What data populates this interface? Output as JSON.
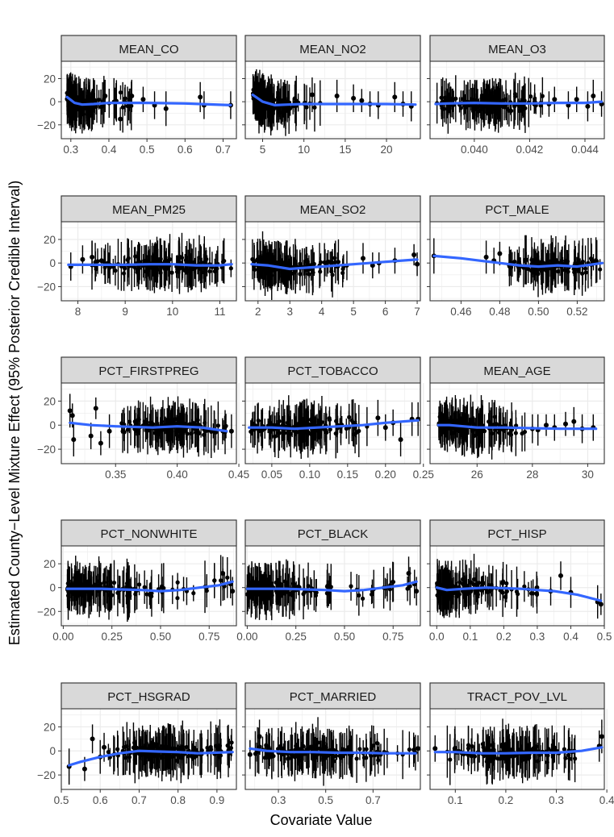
{
  "figure": {
    "ylabel": "Estimated County−Level Mixture Effect (95% Posterior Credible Interval)",
    "xlabel": "Covariate Value",
    "colors": {
      "smooth": "#3366FF",
      "strip": "#D9D9D9",
      "grid": "#EBEBEB",
      "points": "#000000",
      "panel_border": "#333333"
    }
  },
  "chart_data": [
    {
      "type": "scatter",
      "title": "MEAN_CO",
      "xlim": [
        0.275,
        0.735
      ],
      "ylim": [
        -32,
        35
      ],
      "x_ticks": [
        0.3,
        0.4,
        0.5,
        0.6,
        0.7
      ],
      "x_tick_labels": [
        "0.3",
        "0.4",
        "0.5",
        "0.6",
        "0.7"
      ],
      "y_ticks": [
        -20,
        0,
        20
      ],
      "y_tick_labels": [
        "−20",
        "0",
        "20"
      ],
      "dense": {
        "x_range": [
          0.29,
          0.46
        ],
        "peak": 0.31,
        "n": 150
      },
      "points": [
        [
          0.46,
          5
        ],
        [
          0.43,
          -15
        ],
        [
          0.49,
          2
        ],
        [
          0.52,
          -3
        ],
        [
          0.55,
          -6
        ],
        [
          0.64,
          4
        ],
        [
          0.65,
          -3
        ],
        [
          0.72,
          -3
        ],
        [
          0.39,
          5
        ]
      ],
      "smooth": {
        "x": [
          0.29,
          0.31,
          0.33,
          0.36,
          0.4,
          0.5,
          0.6,
          0.72
        ],
        "y": [
          4,
          -1,
          -2.5,
          -2,
          -1,
          -1,
          -1.5,
          -3
        ]
      }
    },
    {
      "type": "scatter",
      "title": "MEAN_NO2",
      "xlim": [
        2.9,
        24.1
      ],
      "ylim": [
        -32,
        35
      ],
      "x_ticks": [
        5,
        10,
        15,
        20
      ],
      "x_tick_labels": [
        "5",
        "10",
        "15",
        "20"
      ],
      "y_ticks": [
        -20,
        0,
        20
      ],
      "y_tick_labels": [
        "−20",
        "0",
        "20"
      ],
      "dense": {
        "x_range": [
          3.8,
          12
        ],
        "peak": 4.8,
        "n": 150
      },
      "points": [
        [
          14,
          5
        ],
        [
          11,
          6
        ],
        [
          16,
          3
        ],
        [
          17,
          1
        ],
        [
          19,
          -3
        ],
        [
          21,
          4
        ],
        [
          22,
          -2
        ],
        [
          23,
          -4
        ],
        [
          18,
          -2
        ]
      ],
      "smooth": {
        "x": [
          3.8,
          5,
          6.5,
          8,
          10,
          15,
          20,
          23.5
        ],
        "y": [
          6,
          0,
          -3,
          -2.5,
          -2,
          -2,
          -2,
          -2.5
        ]
      }
    },
    {
      "type": "scatter",
      "title": "MEAN_O3",
      "xlim": [
        0.0384,
        0.0447
      ],
      "ylim": [
        -32,
        35
      ],
      "x_ticks": [
        0.04,
        0.042,
        0.044
      ],
      "x_tick_labels": [
        "0.040",
        "0.042",
        "0.044"
      ],
      "y_ticks": [
        -20,
        0,
        20
      ],
      "y_tick_labels": [
        "−20",
        "0",
        "20"
      ],
      "dense": {
        "x_range": [
          0.0386,
          0.0425
        ],
        "peak": 0.0404,
        "n": 150
      },
      "points": [
        [
          0.0429,
          2
        ],
        [
          0.0434,
          -3
        ],
        [
          0.0437,
          2
        ],
        [
          0.0441,
          -4
        ],
        [
          0.0443,
          5
        ],
        [
          0.0446,
          -2
        ],
        [
          0.0427,
          -2
        ]
      ],
      "smooth": {
        "x": [
          0.0386,
          0.039,
          0.04,
          0.041,
          0.042,
          0.043,
          0.044,
          0.0446
        ],
        "y": [
          -2,
          -1.5,
          -1,
          -1.5,
          -1.5,
          -1,
          -1,
          0
        ]
      }
    },
    {
      "type": "scatter",
      "title": "MEAN_PM25",
      "xlim": [
        7.65,
        11.35
      ],
      "ylim": [
        -32,
        35
      ],
      "x_ticks": [
        8,
        9,
        10,
        11
      ],
      "x_tick_labels": [
        "8",
        "9",
        "10",
        "11"
      ],
      "y_ticks": [
        -20,
        0,
        20
      ],
      "y_tick_labels": [
        "−20",
        "0",
        "20"
      ],
      "dense": {
        "x_range": [
          8.2,
          11.25
        ],
        "peak": 9.9,
        "n": 150
      },
      "points": [
        [
          7.85,
          -3
        ],
        [
          8.1,
          3
        ],
        [
          8.3,
          5
        ],
        [
          8.5,
          2
        ],
        [
          8.65,
          -2
        ]
      ],
      "smooth": {
        "x": [
          7.8,
          8.5,
          9,
          9.5,
          10,
          10.5,
          11,
          11.25
        ],
        "y": [
          -1.5,
          -1.5,
          -1.5,
          -1,
          -1,
          -2,
          -2,
          -1
        ]
      }
    },
    {
      "type": "scatter",
      "title": "MEAN_SO2",
      "xlim": [
        1.6,
        7.1
      ],
      "ylim": [
        -32,
        35
      ],
      "x_ticks": [
        2,
        3,
        4,
        5,
        6,
        7
      ],
      "x_tick_labels": [
        "2",
        "3",
        "4",
        "5",
        "6",
        "7"
      ],
      "y_ticks": [
        -20,
        0,
        20
      ],
      "y_tick_labels": [
        "−20",
        "0",
        "20"
      ],
      "dense": {
        "x_range": [
          1.8,
          5
        ],
        "peak": 2.6,
        "n": 140
      },
      "points": [
        [
          5.3,
          4
        ],
        [
          5.6,
          -2
        ],
        [
          5.8,
          0
        ],
        [
          6.3,
          2
        ],
        [
          6.9,
          7
        ],
        [
          7.0,
          -1
        ],
        [
          4.2,
          1
        ]
      ],
      "smooth": {
        "x": [
          1.8,
          2.3,
          3,
          4,
          5,
          6,
          7
        ],
        "y": [
          -1,
          -2,
          -5,
          -3,
          -1,
          1,
          3
        ]
      }
    },
    {
      "type": "scatter",
      "title": "PCT_MALE",
      "xlim": [
        0.444,
        0.534
      ],
      "ylim": [
        -32,
        35
      ],
      "x_ticks": [
        0.46,
        0.48,
        0.5,
        0.52
      ],
      "x_tick_labels": [
        "0.46",
        "0.48",
        "0.50",
        "0.52"
      ],
      "y_ticks": [
        -20,
        0,
        20
      ],
      "y_tick_labels": [
        "−20",
        "0",
        "20"
      ],
      "dense": {
        "x_range": [
          0.483,
          0.533
        ],
        "peak": 0.505,
        "n": 120
      },
      "points": [
        [
          0.446,
          6
        ],
        [
          0.473,
          5
        ],
        [
          0.477,
          2
        ],
        [
          0.48,
          8
        ]
      ],
      "smooth": {
        "x": [
          0.446,
          0.46,
          0.47,
          0.48,
          0.49,
          0.5,
          0.51,
          0.52,
          0.533
        ],
        "y": [
          6,
          4,
          2,
          0,
          -2,
          -3,
          -2,
          -3,
          0
        ]
      }
    },
    {
      "type": "scatter",
      "title": "PCT_FIRSTPREG",
      "xlim": [
        0.306,
        0.448
      ],
      "ylim": [
        -32,
        35
      ],
      "x_ticks": [
        0.35,
        0.4,
        0.45
      ],
      "x_tick_labels": [
        "0.35",
        "0.40",
        "0.45"
      ],
      "y_ticks": [
        -20,
        0,
        20
      ],
      "y_tick_labels": [
        "−20",
        "0",
        "20"
      ],
      "dense": {
        "x_range": [
          0.35,
          0.44
        ],
        "peak": 0.39,
        "n": 140
      },
      "points": [
        [
          0.313,
          12
        ],
        [
          0.315,
          8
        ],
        [
          0.316,
          -12
        ],
        [
          0.33,
          -9
        ],
        [
          0.334,
          14
        ],
        [
          0.338,
          -15
        ],
        [
          0.345,
          -5
        ],
        [
          0.444,
          -5
        ]
      ],
      "smooth": {
        "x": [
          0.313,
          0.33,
          0.35,
          0.38,
          0.4,
          0.42,
          0.44
        ],
        "y": [
          2,
          0,
          -1,
          -2,
          -1,
          -2,
          -5
        ]
      }
    },
    {
      "type": "scatter",
      "title": "PCT_TOBACCO",
      "xlim": [
        0.015,
        0.246
      ],
      "ylim": [
        -32,
        35
      ],
      "x_ticks": [
        0.05,
        0.1,
        0.15,
        0.2,
        0.25
      ],
      "x_tick_labels": [
        "0.05",
        "0.10",
        "0.15",
        "0.20",
        "0.25"
      ],
      "y_ticks": [
        -20,
        0,
        20
      ],
      "y_tick_labels": [
        "−20",
        "0",
        "20"
      ],
      "dense": {
        "x_range": [
          0.02,
          0.18
        ],
        "peak": 0.09,
        "n": 150
      },
      "points": [
        [
          0.19,
          6
        ],
        [
          0.2,
          -2
        ],
        [
          0.21,
          2
        ],
        [
          0.22,
          -12
        ],
        [
          0.235,
          5
        ],
        [
          0.243,
          5
        ]
      ],
      "smooth": {
        "x": [
          0.02,
          0.05,
          0.08,
          0.11,
          0.14,
          0.17,
          0.2,
          0.243
        ],
        "y": [
          -2,
          -2,
          -3,
          -2,
          -1,
          0,
          2,
          4
        ]
      }
    },
    {
      "type": "scatter",
      "title": "MEAN_AGE",
      "xlim": [
        24.3,
        30.6
      ],
      "ylim": [
        -32,
        35
      ],
      "x_ticks": [
        26,
        28,
        30
      ],
      "x_tick_labels": [
        "26",
        "28",
        "30"
      ],
      "y_ticks": [
        -20,
        0,
        20
      ],
      "y_tick_labels": [
        "−20",
        "0",
        "20"
      ],
      "dense": {
        "x_range": [
          24.6,
          27.8
        ],
        "peak": 25.5,
        "n": 150
      },
      "points": [
        [
          28.2,
          -4
        ],
        [
          28.5,
          0
        ],
        [
          28.8,
          -2
        ],
        [
          29.2,
          1
        ],
        [
          29.5,
          3
        ],
        [
          29.8,
          -3
        ],
        [
          30.2,
          -2
        ],
        [
          28.0,
          -3
        ]
      ],
      "smooth": {
        "x": [
          24.6,
          25,
          25.5,
          26,
          27,
          28,
          29,
          30.3
        ],
        "y": [
          0,
          0,
          -1,
          -2,
          -2,
          -2.5,
          -3,
          -3
        ]
      }
    },
    {
      "type": "scatter",
      "title": "PCT_NONWHITE",
      "xlim": [
        -0.01,
        0.89
      ],
      "ylim": [
        -32,
        35
      ],
      "x_ticks": [
        0,
        0.25,
        0.5,
        0.75
      ],
      "x_tick_labels": [
        "0.00",
        "0.25",
        "0.50",
        "0.75"
      ],
      "y_ticks": [
        -20,
        0,
        20
      ],
      "y_tick_labels": [
        "−20",
        "0",
        "20"
      ],
      "dense": {
        "x_range": [
          0.02,
          0.85
        ],
        "peak": 0.08,
        "n": 160
      },
      "points": [
        [
          0.82,
          12
        ],
        [
          0.87,
          -3
        ],
        [
          0.86,
          3
        ]
      ],
      "smooth": {
        "x": [
          0.02,
          0.2,
          0.4,
          0.5,
          0.6,
          0.7,
          0.8,
          0.87
        ],
        "y": [
          -1,
          -1,
          -2,
          -3,
          -2,
          0,
          2,
          5
        ]
      }
    },
    {
      "type": "scatter",
      "title": "PCT_BLACK",
      "xlim": [
        -0.01,
        0.89
      ],
      "ylim": [
        -32,
        35
      ],
      "x_ticks": [
        0,
        0.25,
        0.5,
        0.75
      ],
      "x_tick_labels": [
        "0.00",
        "0.25",
        "0.50",
        "0.75"
      ],
      "y_ticks": [
        -20,
        0,
        20
      ],
      "y_tick_labels": [
        "−20",
        "0",
        "20"
      ],
      "dense": {
        "x_range": [
          0.0,
          0.85
        ],
        "peak": 0.05,
        "n": 160
      },
      "points": [
        [
          0.83,
          12
        ],
        [
          0.87,
          -3
        ],
        [
          0.86,
          3
        ]
      ],
      "smooth": {
        "x": [
          0.0,
          0.2,
          0.4,
          0.5,
          0.6,
          0.7,
          0.8,
          0.87
        ],
        "y": [
          -1,
          -1,
          -2,
          -3,
          -2,
          0,
          2,
          5
        ]
      }
    },
    {
      "type": "scatter",
      "title": "PCT_HISP",
      "xlim": [
        -0.02,
        0.5
      ],
      "ylim": [
        -32,
        35
      ],
      "x_ticks": [
        0,
        0.1,
        0.2,
        0.3,
        0.4,
        0.5
      ],
      "x_tick_labels": [
        "0.0",
        "0.1",
        "0.2",
        "0.3",
        "0.4",
        "0.5"
      ],
      "y_ticks": [
        -20,
        0,
        20
      ],
      "y_tick_labels": [
        "−20",
        "0",
        "20"
      ],
      "dense": {
        "x_range": [
          0.0,
          0.3
        ],
        "peak": 0.03,
        "n": 150
      },
      "points": [
        [
          0.37,
          10
        ],
        [
          0.34,
          -3
        ],
        [
          0.4,
          -4
        ],
        [
          0.48,
          -12
        ],
        [
          0.49,
          -14
        ]
      ],
      "smooth": {
        "x": [
          0.0,
          0.03,
          0.08,
          0.15,
          0.25,
          0.35,
          0.42,
          0.49
        ],
        "y": [
          0,
          -2,
          -1,
          0,
          -1,
          -3,
          -6,
          -11
        ]
      }
    },
    {
      "type": "scatter",
      "title": "PCT_HSGRAD",
      "xlim": [
        0.5,
        0.95
      ],
      "ylim": [
        -32,
        35
      ],
      "x_ticks": [
        0.5,
        0.6,
        0.7,
        0.8,
        0.9
      ],
      "x_tick_labels": [
        "0.5",
        "0.6",
        "0.7",
        "0.8",
        "0.9"
      ],
      "y_ticks": [
        -20,
        0,
        20
      ],
      "y_tick_labels": [
        "−20",
        "0",
        "20"
      ],
      "dense": {
        "x_range": [
          0.62,
          0.94
        ],
        "peak": 0.76,
        "n": 150
      },
      "points": [
        [
          0.52,
          -13
        ],
        [
          0.56,
          -15
        ],
        [
          0.58,
          10
        ],
        [
          0.6,
          -5
        ],
        [
          0.61,
          3
        ]
      ],
      "smooth": {
        "x": [
          0.52,
          0.55,
          0.6,
          0.65,
          0.7,
          0.75,
          0.8,
          0.85,
          0.94
        ],
        "y": [
          -12,
          -9,
          -5,
          -2,
          0,
          -0.5,
          -1,
          -2,
          -1
        ]
      }
    },
    {
      "type": "scatter",
      "title": "PCT_MARRIED",
      "xlim": [
        0.16,
        0.9
      ],
      "ylim": [
        -32,
        35
      ],
      "x_ticks": [
        0.3,
        0.5,
        0.7
      ],
      "x_tick_labels": [
        "0.3",
        "0.5",
        "0.7"
      ],
      "y_ticks": [
        -20,
        0,
        20
      ],
      "y_tick_labels": [
        "−20",
        "0",
        "20"
      ],
      "dense": {
        "x_range": [
          0.2,
          0.88
        ],
        "peak": 0.45,
        "n": 150
      },
      "points": [
        [
          0.18,
          -3
        ],
        [
          0.22,
          12
        ],
        [
          0.89,
          2
        ]
      ],
      "smooth": {
        "x": [
          0.18,
          0.25,
          0.35,
          0.45,
          0.55,
          0.65,
          0.75,
          0.88
        ],
        "y": [
          2,
          0,
          -1,
          -1,
          -1.5,
          -1.5,
          -2,
          -2
        ]
      }
    },
    {
      "type": "scatter",
      "title": "TRACT_POV_LVL",
      "xlim": [
        0.05,
        0.395
      ],
      "ylim": [
        -32,
        35
      ],
      "x_ticks": [
        0.1,
        0.2,
        0.3,
        0.4
      ],
      "x_tick_labels": [
        "0.1",
        "0.2",
        "0.3",
        "0.4"
      ],
      "y_ticks": [
        -20,
        0,
        20
      ],
      "y_tick_labels": [
        "−20",
        "0",
        "20"
      ],
      "dense": {
        "x_range": [
          0.07,
          0.34
        ],
        "peak": 0.2,
        "n": 150
      },
      "points": [
        [
          0.06,
          2
        ],
        [
          0.39,
          12
        ],
        [
          0.385,
          4
        ]
      ],
      "smooth": {
        "x": [
          0.06,
          0.1,
          0.15,
          0.2,
          0.25,
          0.3,
          0.35,
          0.39
        ],
        "y": [
          -1,
          -1,
          -2,
          -2,
          -1.5,
          -1.5,
          0,
          3
        ]
      }
    }
  ]
}
